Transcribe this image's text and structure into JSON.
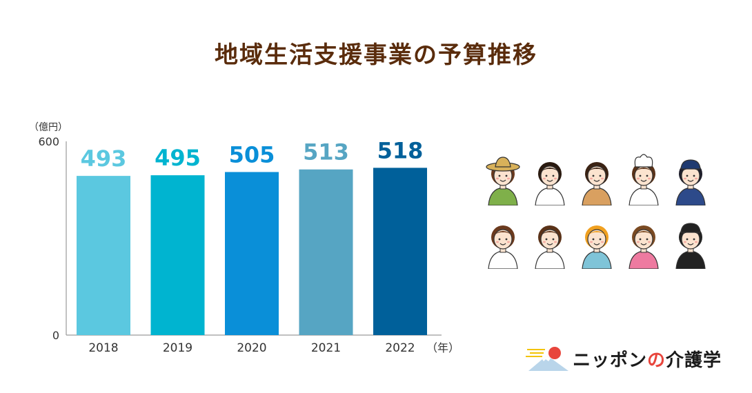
{
  "title": "地域生活支援事業の予算推移",
  "chart_data": {
    "type": "bar",
    "title": "地域生活支援事業の予算推移",
    "y_unit": "（億円）",
    "x_unit": "（年）",
    "categories": [
      "2018",
      "2019",
      "2020",
      "2021",
      "2022"
    ],
    "values": [
      493,
      495,
      505,
      513,
      518
    ],
    "value_labels": [
      "493",
      "495",
      "505",
      "513",
      "518"
    ],
    "bar_colors": [
      "#5bc8e0",
      "#00b4d0",
      "#0a8fd8",
      "#56a5c3",
      "#00609a"
    ],
    "label_colors": [
      "#5bc8e0",
      "#00b4d0",
      "#0a8fd8",
      "#56a5c3",
      "#00609a"
    ],
    "ylim": [
      0,
      600
    ],
    "yticks": [
      "0",
      "600"
    ],
    "grid": false,
    "legend": "none"
  },
  "illustration": {
    "people": [
      "farmer-icon",
      "doctor-icon",
      "teacher-icon",
      "chef-icon",
      "police-officer-icon",
      "office-worker-icon",
      "nurse-icon",
      "hairdresser-icon",
      "nursery-teacher-icon",
      "waiter-icon"
    ]
  },
  "logo": {
    "text_a": "ニッポン",
    "text_b": "の",
    "text_c": "介護学",
    "colors": {
      "sun": "#e8453c",
      "wave": "#f3c300",
      "mountain": "#b9d5ea"
    }
  }
}
